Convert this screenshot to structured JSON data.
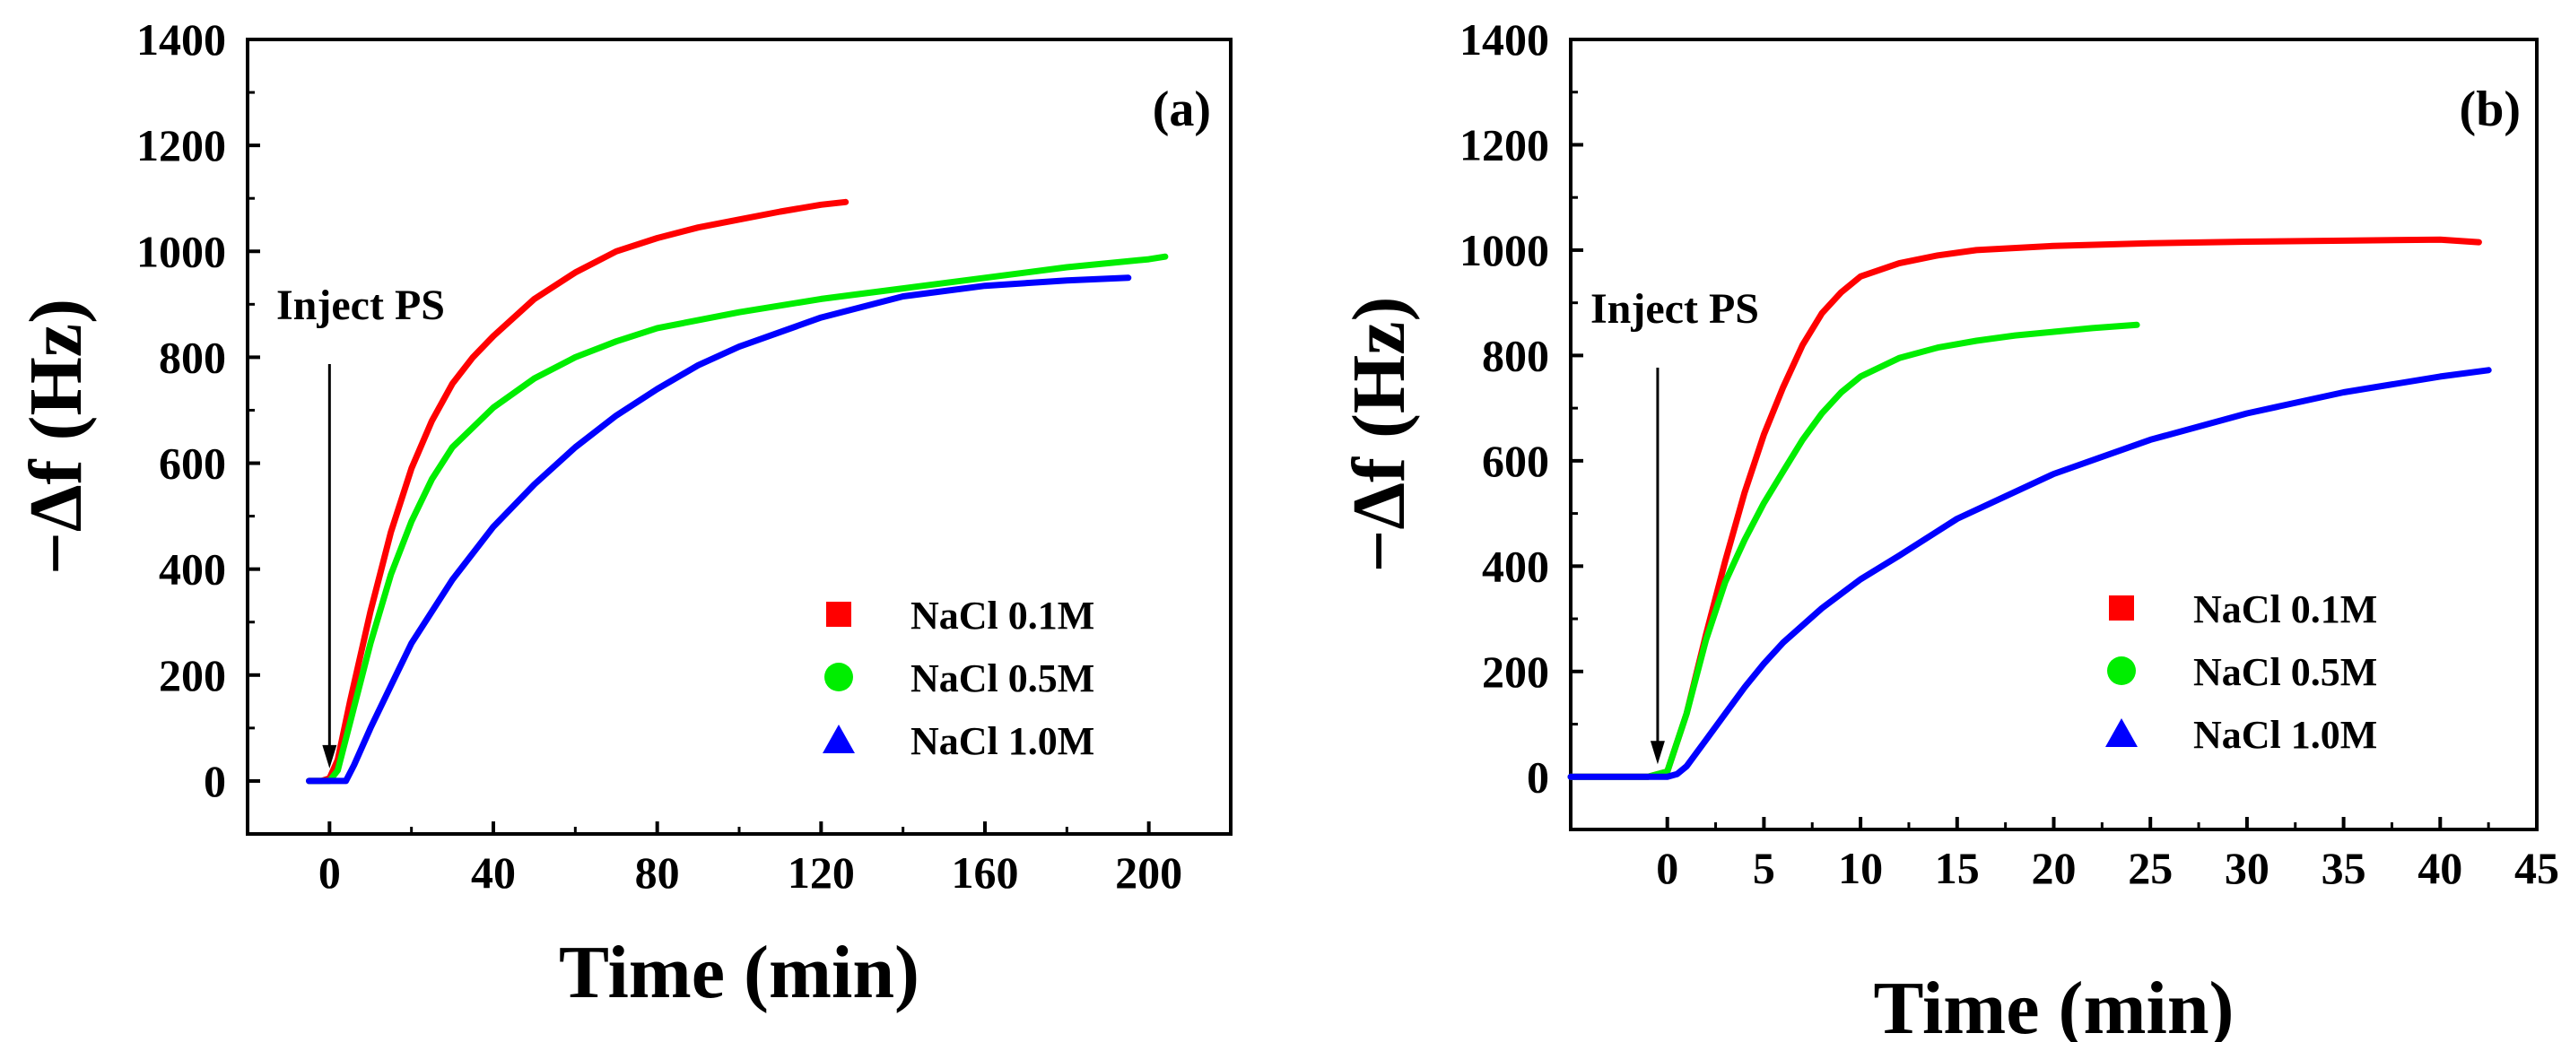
{
  "chart_data": [
    {
      "panel": "(a)",
      "type": "line",
      "xlabel": "Time (min)",
      "ylabel": "−Δf (Hz)",
      "xlim": [
        -20,
        220
      ],
      "ylim": [
        -100,
        1400
      ],
      "xticks": [
        0,
        40,
        80,
        120,
        160,
        200
      ],
      "yticks": [
        0,
        200,
        400,
        600,
        800,
        1000,
        1200,
        1400
      ],
      "grid": false,
      "legend_position": "bottom-right",
      "annotation": {
        "text": "Inject PS",
        "x": 0,
        "y": 0
      },
      "series": [
        {
          "name": "NaCl 0.1M",
          "color": "#ff0000",
          "marker": "square",
          "x": [
            -5,
            -2,
            0,
            2,
            5,
            10,
            15,
            20,
            25,
            30,
            35,
            40,
            50,
            60,
            70,
            80,
            90,
            100,
            110,
            120,
            126
          ],
          "y": [
            0,
            0,
            5,
            40,
            150,
            320,
            470,
            590,
            680,
            750,
            800,
            840,
            910,
            960,
            1000,
            1025,
            1045,
            1060,
            1075,
            1088,
            1093
          ]
        },
        {
          "name": "NaCl 0.5M",
          "color": "#00ee00",
          "marker": "circle",
          "x": [
            -5,
            0,
            2,
            5,
            10,
            15,
            20,
            25,
            30,
            40,
            50,
            60,
            70,
            80,
            100,
            120,
            140,
            160,
            180,
            200,
            204
          ],
          "y": [
            0,
            0,
            20,
            110,
            260,
            390,
            490,
            570,
            630,
            705,
            760,
            800,
            830,
            855,
            885,
            910,
            930,
            950,
            970,
            985,
            990
          ]
        },
        {
          "name": "NaCl 1.0M",
          "color": "#0000ff",
          "marker": "triangle",
          "x": [
            -5,
            0,
            2,
            4,
            6,
            10,
            15,
            20,
            30,
            40,
            50,
            60,
            70,
            80,
            90,
            100,
            120,
            140,
            160,
            180,
            195
          ],
          "y": [
            0,
            0,
            0,
            0,
            30,
            100,
            180,
            260,
            380,
            480,
            560,
            630,
            690,
            740,
            785,
            820,
            875,
            915,
            935,
            945,
            950
          ]
        }
      ]
    },
    {
      "panel": "(b)",
      "type": "line",
      "xlabel": "Time (min)",
      "ylabel": "−Δf (Hz)",
      "xlim": [
        -5,
        45
      ],
      "ylim": [
        -100,
        1400
      ],
      "xticks": [
        0,
        5,
        10,
        15,
        20,
        25,
        30,
        35,
        40,
        45
      ],
      "yticks": [
        0,
        200,
        400,
        600,
        800,
        1000,
        1200,
        1400
      ],
      "grid": false,
      "legend_position": "bottom-right",
      "annotation": {
        "text": "Inject PS",
        "x": -0.5,
        "y": 0
      },
      "series": [
        {
          "name": "NaCl 0.1M",
          "color": "#ff0000",
          "marker": "square",
          "x": [
            -5,
            -1,
            0,
            1,
            2,
            3,
            4,
            5,
            6,
            7,
            8,
            9,
            10,
            12,
            14,
            16,
            20,
            25,
            30,
            35,
            40,
            42
          ],
          "y": [
            0,
            0,
            10,
            120,
            270,
            410,
            540,
            650,
            740,
            820,
            880,
            920,
            950,
            975,
            990,
            1000,
            1008,
            1013,
            1016,
            1018,
            1020,
            1015
          ]
        },
        {
          "name": "NaCl 0.5M",
          "color": "#00ee00",
          "marker": "circle",
          "x": [
            -5,
            -1,
            0,
            1,
            2,
            3,
            4,
            5,
            6,
            7,
            8,
            9,
            10,
            12,
            14,
            16,
            18,
            20,
            22,
            24.3
          ],
          "y": [
            0,
            0,
            10,
            120,
            260,
            370,
            450,
            520,
            580,
            640,
            690,
            730,
            760,
            795,
            815,
            828,
            838,
            845,
            852,
            858
          ]
        },
        {
          "name": "NaCl 1.0M",
          "color": "#0000ff",
          "marker": "triangle",
          "x": [
            -5,
            -1,
            0,
            0.5,
            1,
            2,
            3,
            4,
            5,
            6,
            8,
            10,
            12,
            15,
            20,
            25,
            30,
            35,
            40,
            42.5
          ],
          "y": [
            0,
            0,
            0,
            5,
            20,
            70,
            120,
            170,
            215,
            255,
            320,
            375,
            420,
            490,
            575,
            640,
            690,
            730,
            760,
            772
          ]
        }
      ]
    }
  ]
}
